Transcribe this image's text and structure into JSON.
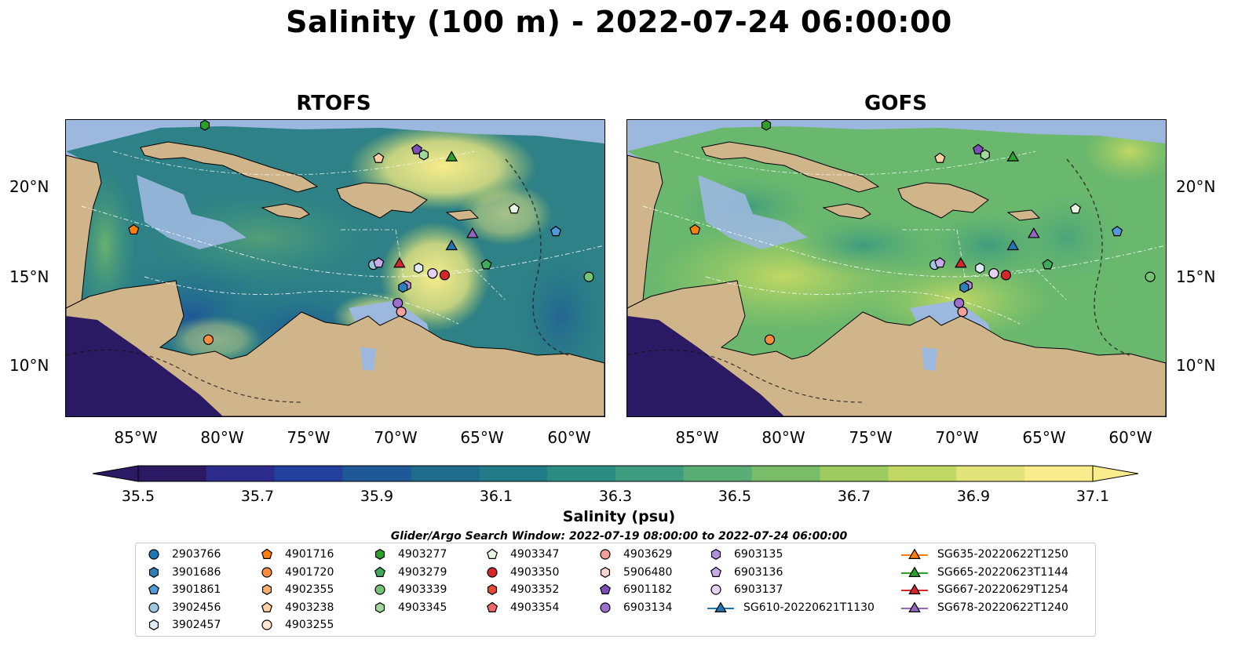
{
  "title": "Salinity (100 m) - 2022-07-24 06:00:00",
  "panels": [
    {
      "id": "rtofs",
      "title": "RTOFS"
    },
    {
      "id": "gofs",
      "title": "GOFS"
    }
  ],
  "latitude_ticks": [
    "20°N",
    "15°N",
    "10°N"
  ],
  "longitude_ticks": [
    "85°W",
    "80°W",
    "75°W",
    "70°W",
    "65°W",
    "60°W"
  ],
  "colorbar": {
    "label": "Salinity (psu)",
    "ticks": [
      "35.5",
      "35.7",
      "35.9",
      "36.1",
      "36.3",
      "36.5",
      "36.7",
      "36.9",
      "37.1"
    ],
    "range": [
      35.5,
      37.1
    ],
    "colormap": [
      "#2a1a63",
      "#2c2b8c",
      "#22409c",
      "#1f5897",
      "#1f6b8c",
      "#227c87",
      "#2a8c83",
      "#3e9c7e",
      "#5aad74",
      "#79bd68",
      "#9dcb60",
      "#c2d865",
      "#e2e37a",
      "#f8ec8c"
    ]
  },
  "search_window": "Glider/Argo Search Window: 2022-07-19 08:00:00 to 2022-07-24 06:00:00",
  "legend": [
    {
      "label": "2903766",
      "marker": "circle",
      "color": "#1f77b4"
    },
    {
      "label": "3901686",
      "marker": "hexagon",
      "color": "#2c7fb8"
    },
    {
      "label": "3901861",
      "marker": "pentagon",
      "color": "#4f9bd9"
    },
    {
      "label": "3902456",
      "marker": "circle",
      "color": "#9ecae1"
    },
    {
      "label": "3902457",
      "marker": "hexagon",
      "color": "#deebf7"
    },
    {
      "label": "4901716",
      "marker": "pentagon",
      "color": "#ff7f0e"
    },
    {
      "label": "4901720",
      "marker": "circle",
      "color": "#fd8d3c"
    },
    {
      "label": "4902355",
      "marker": "hexagon",
      "color": "#fdae6b"
    },
    {
      "label": "4903238",
      "marker": "pentagon",
      "color": "#fdd0a2"
    },
    {
      "label": "4903255",
      "marker": "circle",
      "color": "#fee6ce"
    },
    {
      "label": "4903277",
      "marker": "hexagon",
      "color": "#2ca02c"
    },
    {
      "label": "4903279",
      "marker": "pentagon",
      "color": "#41ab5d"
    },
    {
      "label": "4903339",
      "marker": "circle",
      "color": "#74c476"
    },
    {
      "label": "4903345",
      "marker": "hexagon",
      "color": "#a1d99b"
    },
    {
      "label": "4903347",
      "marker": "pentagon",
      "color": "#e5f5e0"
    },
    {
      "label": "4903350",
      "marker": "circle",
      "color": "#d62728"
    },
    {
      "label": "4903352",
      "marker": "hexagon",
      "color": "#e34a33"
    },
    {
      "label": "4903354",
      "marker": "pentagon",
      "color": "#f16868"
    },
    {
      "label": "4903629",
      "marker": "circle",
      "color": "#f4a09a"
    },
    {
      "label": "5906480",
      "marker": "hexagon",
      "color": "#fcd5d0"
    },
    {
      "label": "6901182",
      "marker": "pentagon",
      "color": "#7b4fb8"
    },
    {
      "label": "6903134",
      "marker": "circle",
      "color": "#9e6fcf"
    },
    {
      "label": "6903135",
      "marker": "hexagon",
      "color": "#b38de0"
    },
    {
      "label": "6903136",
      "marker": "pentagon",
      "color": "#c9aaea"
    },
    {
      "label": "6903137",
      "marker": "circle",
      "color": "#e4d3f5"
    },
    {
      "label": "SG610-20220621T1130",
      "marker": "triangle-line",
      "color": "#1f77b4"
    },
    {
      "label": "SG635-20220622T1250",
      "marker": "triangle-line",
      "color": "#ff7f0e"
    },
    {
      "label": "SG665-20220623T1144",
      "marker": "triangle-line",
      "color": "#2ca02c"
    },
    {
      "label": "SG667-20220629T1254",
      "marker": "triangle-line",
      "color": "#d62728"
    },
    {
      "label": "SG678-20220622T1240",
      "marker": "triangle-line",
      "color": "#9467bd"
    }
  ],
  "map_extent": {
    "lon": [
      -89,
      -58
    ],
    "lat": [
      7,
      24
    ]
  },
  "observations": [
    {
      "id": "4903277",
      "lon": -81.0,
      "lat": 23.7
    },
    {
      "id": "4903238",
      "lon": -71.0,
      "lat": 21.8
    },
    {
      "id": "6901182",
      "lon": -68.8,
      "lat": 22.3
    },
    {
      "id": "4903345",
      "lon": -68.4,
      "lat": 22.0
    },
    {
      "id": "SG665-20220623T1144",
      "lon": -66.8,
      "lat": 21.9
    },
    {
      "id": "4903347",
      "lon": -63.2,
      "lat": 18.9
    },
    {
      "id": "4901716",
      "lon": -85.1,
      "lat": 17.7
    },
    {
      "id": "3901861",
      "lon": -60.8,
      "lat": 17.6
    },
    {
      "id": "SG678-20220622T1240",
      "lon": -65.6,
      "lat": 17.5
    },
    {
      "id": "SG610-20220621T1130",
      "lon": -66.8,
      "lat": 16.8
    },
    {
      "id": "SG667-20220629T1254",
      "lon": -69.8,
      "lat": 15.8
    },
    {
      "id": "3902456",
      "lon": -71.3,
      "lat": 15.7
    },
    {
      "id": "6903136",
      "lon": -71.0,
      "lat": 15.8
    },
    {
      "id": "3902457",
      "lon": -68.7,
      "lat": 15.5
    },
    {
      "id": "4903629",
      "lon": -67.9,
      "lat": 15.2
    },
    {
      "id": "6903137",
      "lon": -67.9,
      "lat": 15.2
    },
    {
      "id": "4903350",
      "lon": -67.2,
      "lat": 15.1
    },
    {
      "id": "4903279",
      "lon": -64.8,
      "lat": 15.7
    },
    {
      "id": "6903135",
      "lon": -69.4,
      "lat": 14.5
    },
    {
      "id": "3901686",
      "lon": -69.6,
      "lat": 14.4
    },
    {
      "id": "6903134",
      "lon": -69.9,
      "lat": 13.5
    },
    {
      "id": "4903629",
      "lon": -69.7,
      "lat": 13.0
    },
    {
      "id": "4903339",
      "lon": -58.9,
      "lat": 15.0
    },
    {
      "id": "4901720",
      "lon": -80.8,
      "lat": 11.4
    }
  ]
}
